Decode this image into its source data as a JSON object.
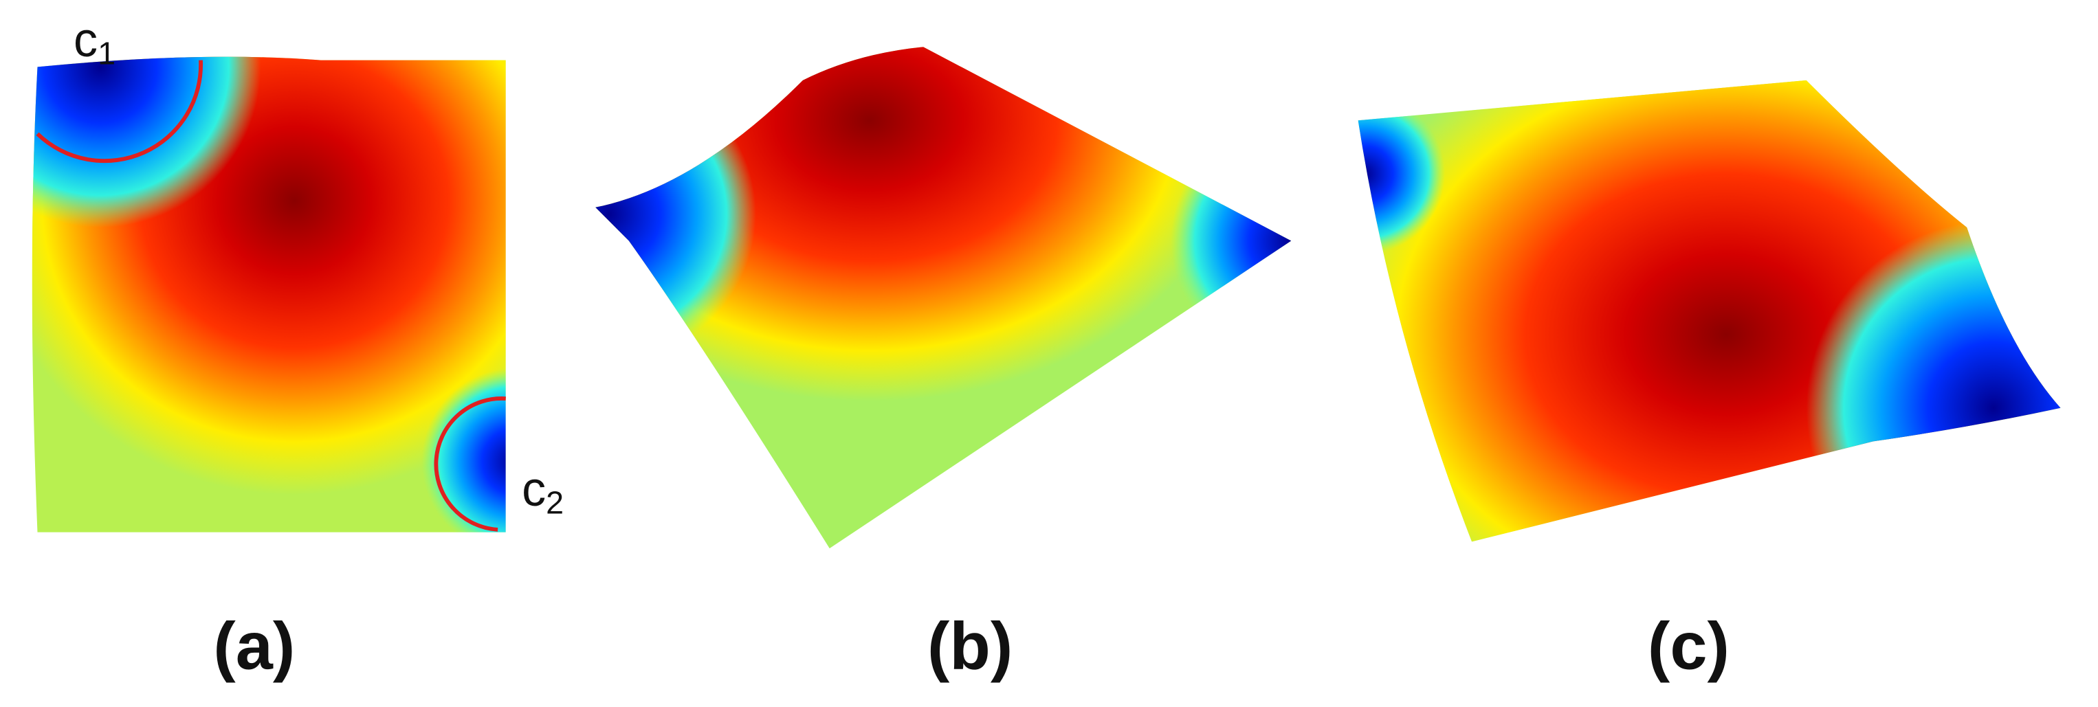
{
  "panels": [
    {
      "label": "(a)",
      "markers": [
        {
          "text": "c",
          "subscript": "1"
        },
        {
          "text": "c",
          "subscript": "2"
        }
      ]
    },
    {
      "label": "(b)"
    },
    {
      "label": "(c)"
    }
  ]
}
